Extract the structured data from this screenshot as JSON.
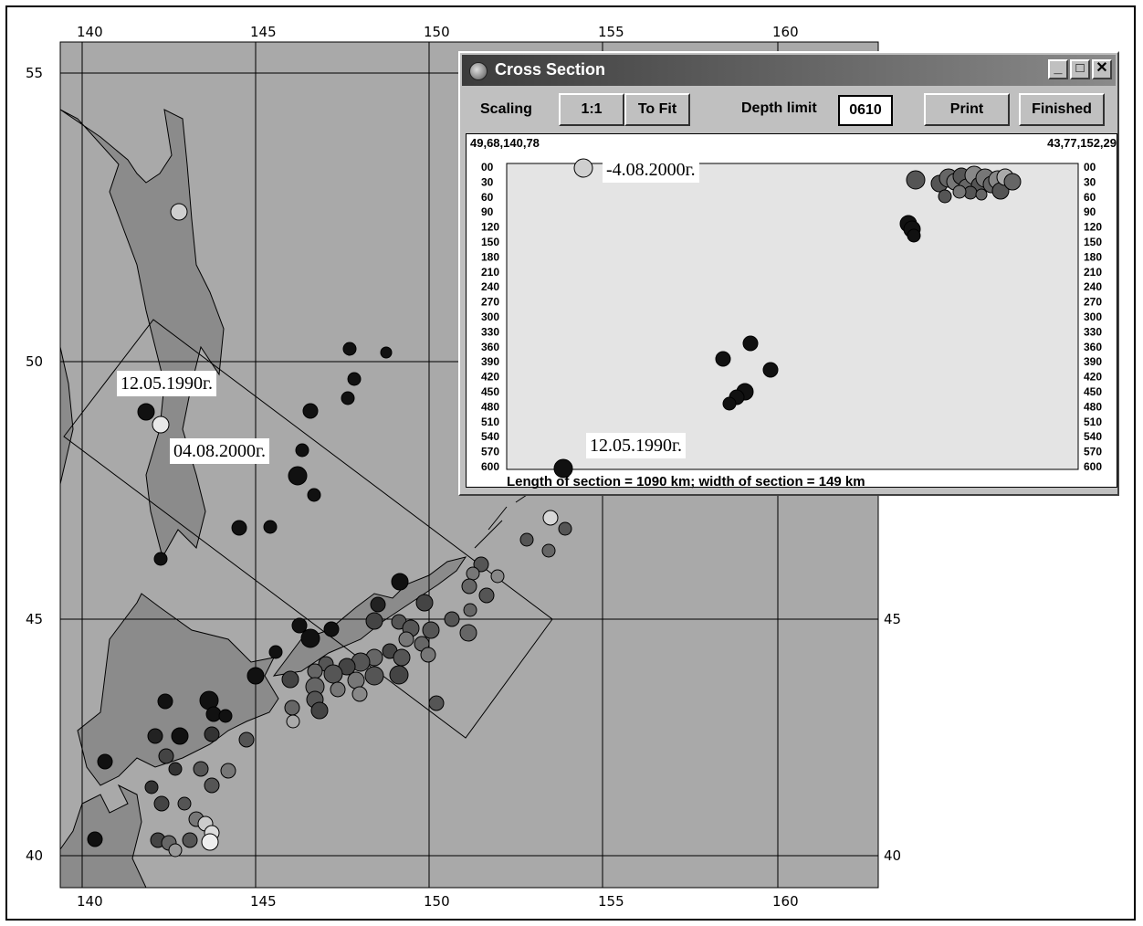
{
  "map": {
    "lon_ticks_top": [
      "140",
      "145",
      "150",
      "155",
      "160"
    ],
    "lon_ticks_bottom": [
      "140",
      "145",
      "150",
      "155",
      "160"
    ],
    "lat_ticks_left": [
      "55",
      "50",
      "45",
      "40"
    ],
    "lat_ticks_right": [
      "45",
      "40"
    ],
    "labels": [
      "12.05.1990г.",
      "04.08.2000г."
    ],
    "colors": {
      "sea": "#a9a9a9",
      "land": "#8b8b8b",
      "grid": "#000000"
    }
  },
  "window": {
    "title": "Cross Section",
    "controls": {
      "minimize": "_",
      "maximize": "□",
      "close": "✕"
    },
    "toolbar": {
      "scaling_label": "Scaling",
      "btn_1to1": "1:1",
      "btn_tofit": "To Fit",
      "depth_limit_label": "Depth limit",
      "depth_limit_value": "0610",
      "print": "Print",
      "finished": "Finished"
    },
    "section": {
      "left_coords": "49,68,140,78",
      "right_coords": "43,77,152,29",
      "depth_ticks": [
        "00",
        "30",
        "60",
        "90",
        "120",
        "150",
        "180",
        "210",
        "240",
        "270",
        "300",
        "330",
        "360",
        "390",
        "420",
        "450",
        "480",
        "510",
        "540",
        "570",
        "600"
      ],
      "label_top": "-4.08.2000г.",
      "label_bottom": "12.05.1990г.",
      "footer": "Length of section = 1090 km; width of section = 149 km"
    }
  }
}
